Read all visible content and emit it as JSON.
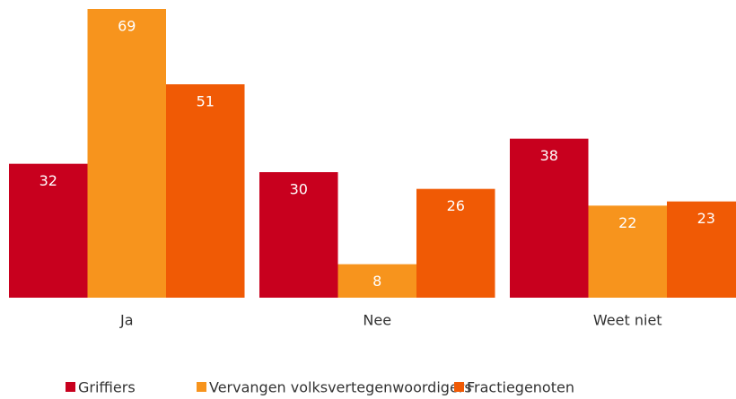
{
  "chart_data": {
    "type": "bar",
    "categories": [
      "Ja",
      "Nee",
      "Weet niet"
    ],
    "series": [
      {
        "name": "Griffiers",
        "color": "#c8001e",
        "values": [
          32,
          30,
          38
        ]
      },
      {
        "name": "Vervangen volksvertegenwoordigers",
        "color": "#f7941d",
        "values": [
          69,
          8,
          22
        ]
      },
      {
        "name": "Fractiegenoten",
        "color": "#f05a05",
        "values": [
          51,
          26,
          23
        ]
      }
    ],
    "legend": "bottom"
  }
}
